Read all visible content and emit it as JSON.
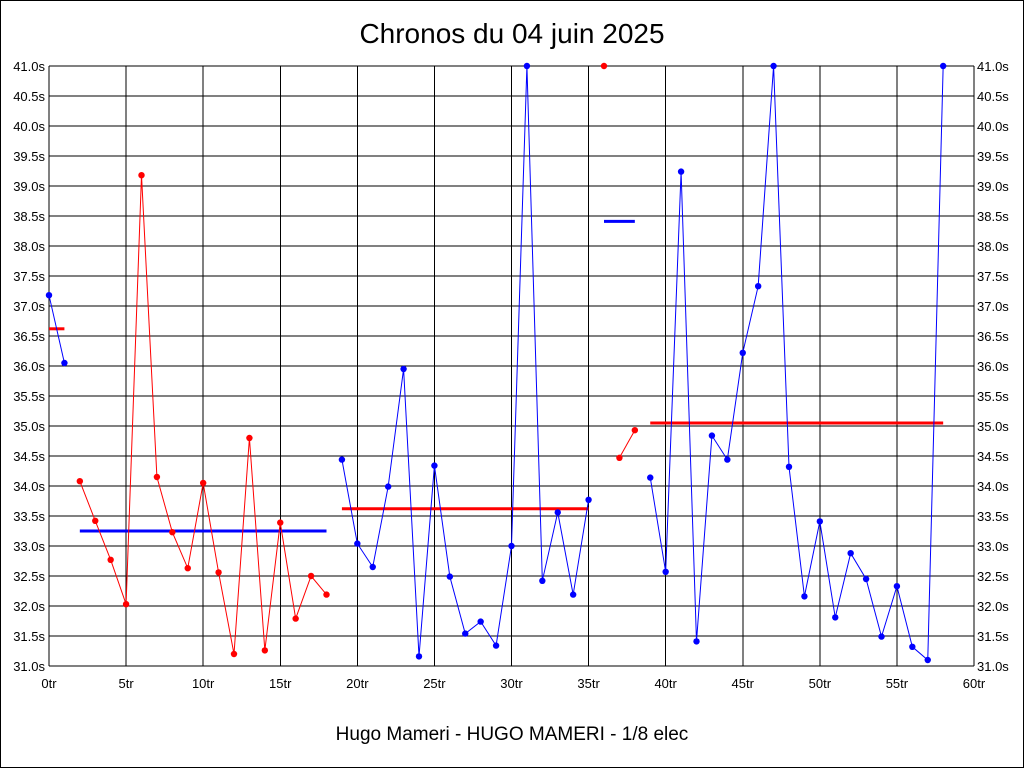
{
  "chart_data": {
    "type": "line",
    "title": "Chronos du 04 juin 2025",
    "subtitle": "Hugo Mameri - HUGO MAMERI - 1/8 elec",
    "xlim": [
      0,
      60
    ],
    "ylim": [
      31.0,
      41.0
    ],
    "x_ticks": [
      {
        "v": 0,
        "label": "0tr"
      },
      {
        "v": 5,
        "label": "5tr"
      },
      {
        "v": 10,
        "label": "10tr"
      },
      {
        "v": 15,
        "label": "15tr"
      },
      {
        "v": 20,
        "label": "20tr"
      },
      {
        "v": 25,
        "label": "25tr"
      },
      {
        "v": 30,
        "label": "30tr"
      },
      {
        "v": 35,
        "label": "35tr"
      },
      {
        "v": 40,
        "label": "40tr"
      },
      {
        "v": 45,
        "label": "45tr"
      },
      {
        "v": 50,
        "label": "50tr"
      },
      {
        "v": 55,
        "label": "55tr"
      },
      {
        "v": 60,
        "label": "60tr"
      }
    ],
    "y_ticks": [
      {
        "v": 31.0,
        "label": "31.0s"
      },
      {
        "v": 31.5,
        "label": "31.5s"
      },
      {
        "v": 32.0,
        "label": "32.0s"
      },
      {
        "v": 32.5,
        "label": "32.5s"
      },
      {
        "v": 33.0,
        "label": "33.0s"
      },
      {
        "v": 33.5,
        "label": "33.5s"
      },
      {
        "v": 34.0,
        "label": "34.0s"
      },
      {
        "v": 34.5,
        "label": "34.5s"
      },
      {
        "v": 35.0,
        "label": "35.0s"
      },
      {
        "v": 35.5,
        "label": "35.5s"
      },
      {
        "v": 36.0,
        "label": "36.0s"
      },
      {
        "v": 36.5,
        "label": "36.5s"
      },
      {
        "v": 37.0,
        "label": "37.0s"
      },
      {
        "v": 37.5,
        "label": "37.5s"
      },
      {
        "v": 38.0,
        "label": "38.0s"
      },
      {
        "v": 38.5,
        "label": "38.5s"
      },
      {
        "v": 39.0,
        "label": "39.0s"
      },
      {
        "v": 39.5,
        "label": "39.5s"
      },
      {
        "v": 40.0,
        "label": "40.0s"
      },
      {
        "v": 40.5,
        "label": "40.5s"
      },
      {
        "v": 41.0,
        "label": "41.0s"
      }
    ],
    "grid": true,
    "colors": {
      "blue": "#0000ff",
      "red": "#ff0000",
      "grid": "#000000"
    },
    "series": [
      {
        "color": "#0000ff",
        "x": [
          0,
          1
        ],
        "y": [
          37.18,
          36.05
        ]
      },
      {
        "color": "#ff0000",
        "x": [
          2,
          3,
          4,
          5,
          6,
          7,
          8,
          9,
          10,
          11,
          12,
          13,
          14,
          15,
          16,
          17,
          18
        ],
        "y": [
          34.08,
          33.42,
          32.77,
          32.03,
          39.18,
          34.15,
          33.23,
          32.63,
          34.05,
          32.56,
          31.2,
          34.8,
          31.26,
          33.39,
          31.79,
          32.5,
          32.19
        ]
      },
      {
        "color": "#0000ff",
        "x": [
          19,
          20,
          21,
          22,
          23,
          24,
          25,
          26,
          27,
          28,
          29,
          30,
          31,
          32,
          33,
          34,
          35
        ],
        "y": [
          34.44,
          33.04,
          32.65,
          33.99,
          35.95,
          31.16,
          34.34,
          32.49,
          31.54,
          31.74,
          31.34,
          33.0,
          41.0,
          32.42,
          33.56,
          32.19,
          33.77
        ]
      },
      {
        "color": "#ff0000",
        "x": [
          36
        ],
        "y": [
          41.0
        ]
      },
      {
        "color": "#ff0000",
        "x": [
          37,
          38
        ],
        "y": [
          34.47,
          34.93
        ]
      },
      {
        "color": "#0000ff",
        "x": [
          39,
          40,
          41,
          42,
          43,
          44,
          45,
          46,
          47,
          48,
          49,
          50,
          51,
          52,
          53,
          54,
          55,
          56,
          57,
          58
        ],
        "y": [
          34.14,
          32.57,
          39.24,
          31.41,
          34.84,
          34.44,
          36.22,
          37.33,
          41.0,
          34.32,
          32.16,
          33.41,
          31.81,
          32.88,
          32.45,
          31.49,
          32.33,
          31.32,
          31.1,
          41.0
        ]
      }
    ],
    "averages": [
      {
        "color": "#ff0000",
        "x": [
          0,
          1
        ],
        "y": 36.62
      },
      {
        "color": "#0000ff",
        "x": [
          2,
          18
        ],
        "y": 33.25
      },
      {
        "color": "#ff0000",
        "x": [
          19,
          35
        ],
        "y": 33.62
      },
      {
        "color": "#0000ff",
        "x": [
          36,
          38
        ],
        "y": 38.41
      },
      {
        "color": "#ff0000",
        "x": [
          39,
          58
        ],
        "y": 35.05
      }
    ]
  }
}
